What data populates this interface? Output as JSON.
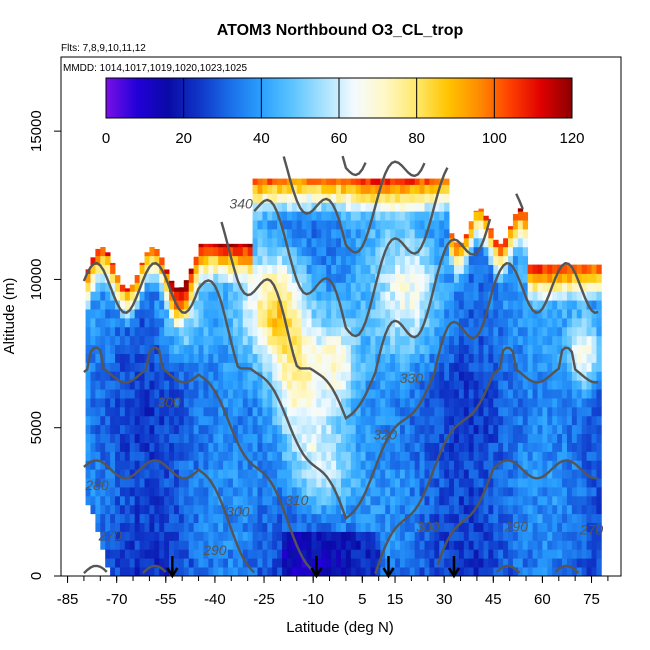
{
  "chart_data": {
    "type": "heatmap",
    "title": "ATOM3 Northbound O3_CL_trop",
    "flights_label": "Flts: 7,8,9,10,11,12",
    "dates_label": "MMDD: 1014,1017,1019,1020,1023,1025",
    "xlabel": "Latitude (deg N)",
    "ylabel": "Altitude (m)",
    "xlim": [
      -87,
      84
    ],
    "ylim": [
      0,
      17500
    ],
    "x_ticks": [
      -85,
      -70,
      -55,
      -40,
      -25,
      -10,
      5,
      15,
      30,
      45,
      60,
      75
    ],
    "y_ticks": [
      0,
      5000,
      10000,
      15000
    ],
    "colorbar": {
      "min": 0,
      "max": 120,
      "ticks": [
        0,
        20,
        40,
        60,
        80,
        100,
        120
      ],
      "colors": [
        "#7a10e8",
        "#2200d8",
        "#0a0aa6",
        "#0f35c8",
        "#1a6ee8",
        "#2aa0ff",
        "#5cc4ff",
        "#a8e2ff",
        "#f4fbff",
        "#fff7c4",
        "#ffe86a",
        "#ffc400",
        "#ff8c00",
        "#ff4000",
        "#e00000",
        "#8c0000"
      ]
    },
    "contours": [
      {
        "label": "270",
        "lat": -72,
        "alt": 1200
      },
      {
        "label": "280",
        "lat": -76,
        "alt": 2900
      },
      {
        "label": "290",
        "lat": -40,
        "alt": 700
      },
      {
        "label": "290",
        "lat": 52,
        "alt": 1500
      },
      {
        "label": "300",
        "lat": -33,
        "alt": 2000
      },
      {
        "label": "300",
        "lat": -54,
        "alt": 5700
      },
      {
        "label": "300",
        "lat": 25,
        "alt": 1500
      },
      {
        "label": "310",
        "lat": -15,
        "alt": 2400
      },
      {
        "label": "320",
        "lat": 12,
        "alt": 4600
      },
      {
        "label": "330",
        "lat": 20,
        "alt": 6500
      },
      {
        "label": "340",
        "lat": -32,
        "alt": 12400
      },
      {
        "label": "270",
        "lat": 75,
        "alt": 1400
      }
    ],
    "flight_markers_lat": [
      -53,
      -9,
      13,
      33
    ],
    "fields": {
      "base": 35,
      "y_trop": 10500,
      "strat_features": [
        {
          "lat": -21,
          "alt": 9000,
          "dlat": 9,
          "dalt": 1800,
          "value": 48
        },
        {
          "lat": -15,
          "alt": 6500,
          "dlat": 8,
          "dalt": 2000,
          "value": 42
        },
        {
          "lat": -3,
          "alt": 7200,
          "dlat": 7,
          "dalt": 1700,
          "value": 35
        },
        {
          "lat": -8,
          "alt": 3800,
          "dlat": 10,
          "dalt": 1800,
          "value": 32
        },
        {
          "lat": 20,
          "alt": 9500,
          "dlat": 10,
          "dalt": 2000,
          "value": 25
        },
        {
          "lat": 73,
          "alt": 7500,
          "dlat": 5,
          "dalt": 1200,
          "value": 35
        },
        {
          "lat": -50,
          "alt": 9000,
          "dlat": 6,
          "dalt": 1500,
          "value": 25
        }
      ]
    }
  }
}
